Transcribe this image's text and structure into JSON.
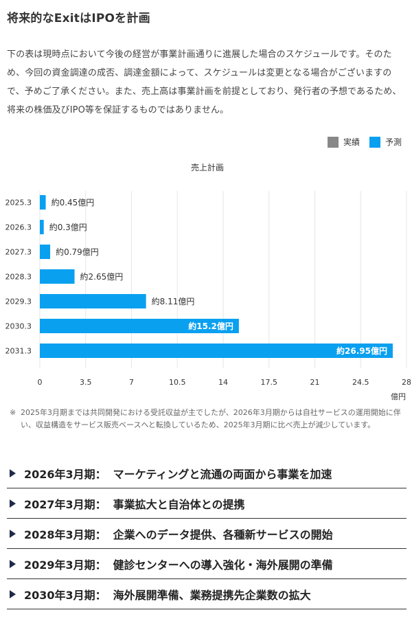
{
  "heading": "将来的なExitはIPOを計画",
  "intro": "下の表は現時点において今後の経営が事業計画通りに進展した場合のスケジュールです。そのため、今回の資金調達の成否、調達金額によって、スケジュールは変更となる場合がございますので、予めご了承ください。また、売上高は事業計画を前提としており、発行者の予想であるため、将来の株価及びIPO等を保証するものではありません。",
  "legend": [
    {
      "label": "実績",
      "color": "#888888"
    },
    {
      "label": "予測",
      "color": "#0aa0f0"
    }
  ],
  "chart_data": {
    "type": "bar",
    "orientation": "horizontal",
    "title": "売上計画",
    "categories": [
      "2025.3",
      "2026.3",
      "2027.3",
      "2028.3",
      "2029.3",
      "2030.3",
      "2031.3"
    ],
    "series": [
      {
        "name": "予測",
        "values": [
          0.45,
          0.3,
          0.79,
          2.65,
          8.11,
          15.2,
          26.95
        ],
        "color": "#0aa0f0"
      }
    ],
    "data_labels": [
      "約0.45億円",
      "約0.3億円",
      "約0.79億円",
      "約2.65億円",
      "約8.11億円",
      "約15.2億円",
      "約26.95億円"
    ],
    "xlim": [
      0,
      28
    ],
    "xticks": [
      "0",
      "3.5",
      "7",
      "10.5",
      "14",
      "17.5",
      "21",
      "24.5",
      "28"
    ],
    "xunit": "億円",
    "grid": true
  },
  "note": {
    "mark": "※",
    "text": "2025年3月期までは共同開発における受託収益が主でしたが、2026年3月期からは自社サービスの運用開始に伴い、収益構造をサービス販売ベースへと転換しているため、2025年3月期に比べ売上が減少しています。"
  },
  "milestones": [
    {
      "period": "2026年3月期：",
      "text": "マーケティングと流通の両面から事業を加速"
    },
    {
      "period": "2027年3月期：",
      "text": "事業拡大と自治体との提携"
    },
    {
      "period": "2028年3月期：",
      "text": "企業へのデータ提供、各種新サービスの開始"
    },
    {
      "period": "2029年3月期：",
      "text": "健診センターへの導入強化・海外展開の準備"
    },
    {
      "period": "2030年3月期：",
      "text": "海外展開準備、業務提携先企業数の拡大"
    }
  ]
}
